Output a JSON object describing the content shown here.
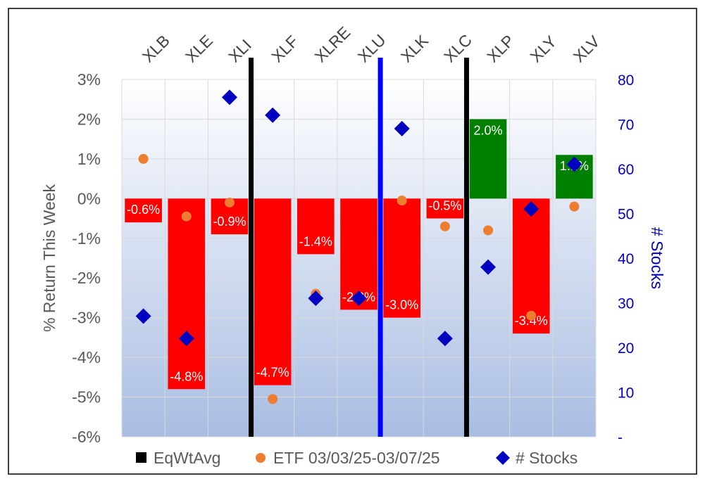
{
  "chart_data": {
    "type": "bar",
    "title": "",
    "categories": [
      "XLB",
      "XLE",
      "XLI",
      "XLF",
      "XLRE",
      "XLU",
      "XLK",
      "XLC",
      "XLP",
      "XLY",
      "XLV"
    ],
    "ylabel": "% Return This Week",
    "y2label": "# Stocks",
    "ylim": [
      -6,
      3
    ],
    "y2lim": [
      0,
      80
    ],
    "yticks": [
      "3%",
      "2%",
      "1%",
      "0%",
      "-1%",
      "-2%",
      "-3%",
      "-4%",
      "-5%",
      "-6%"
    ],
    "y2ticks": [
      "80",
      "70",
      "60",
      "50",
      "40",
      "30",
      "20",
      "10",
      "-"
    ],
    "series": [
      {
        "name": "EqWtAvg",
        "kind": "bar",
        "values": [
          -0.6,
          -4.8,
          -0.9,
          -4.7,
          -1.4,
          -2.8,
          -3.0,
          -0.5,
          2.0,
          -3.4,
          1.1
        ],
        "labels": [
          "-0.6%",
          "-4.8%",
          "-0.9%",
          "-4.7%",
          "-1.4%",
          "-2.8%",
          "-3.0%",
          "-0.5%",
          "2.0%",
          "-3.4%",
          "1.1%"
        ]
      },
      {
        "name": "ETF 03/03/25-03/07/25",
        "kind": "scatter",
        "values": [
          1.0,
          -0.45,
          -0.1,
          -5.05,
          -2.4,
          -2.5,
          -0.05,
          -0.7,
          -0.8,
          -2.95,
          -0.2
        ]
      },
      {
        "name": "# Stocks",
        "kind": "scatter",
        "axis": "secondary",
        "values": [
          27,
          22,
          76,
          72,
          31,
          31,
          69,
          22,
          38,
          51,
          61
        ]
      }
    ],
    "dividers": [
      {
        "between": [
          "XLI",
          "XLF"
        ],
        "color": "black"
      },
      {
        "between": [
          "XLU",
          "XLK"
        ],
        "color": "blue"
      },
      {
        "between": [
          "XLC",
          "XLP"
        ],
        "color": "black"
      }
    ],
    "legend": [
      "EqWtAvg",
      "ETF 03/03/25-03/07/25",
      "# Stocks"
    ],
    "legend_position": "bottom"
  },
  "colors": {
    "bar_negative": "#ff0000",
    "bar_positive": "#008000",
    "etf_marker": "#ed7d31",
    "stocks_marker": "#0000c0",
    "divider_black": "#000000",
    "divider_blue": "#0000ff",
    "axis_text": "#595959",
    "y2_text": "#0000c0",
    "legend_bar": "#000000"
  }
}
